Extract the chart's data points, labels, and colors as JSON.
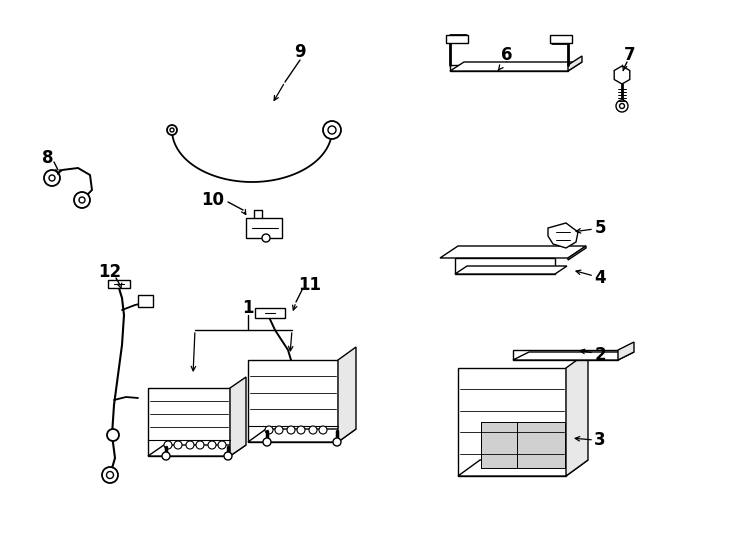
{
  "bg": "#ffffff",
  "lc": "#000000",
  "lw": 1.0,
  "label_fs": 12
}
